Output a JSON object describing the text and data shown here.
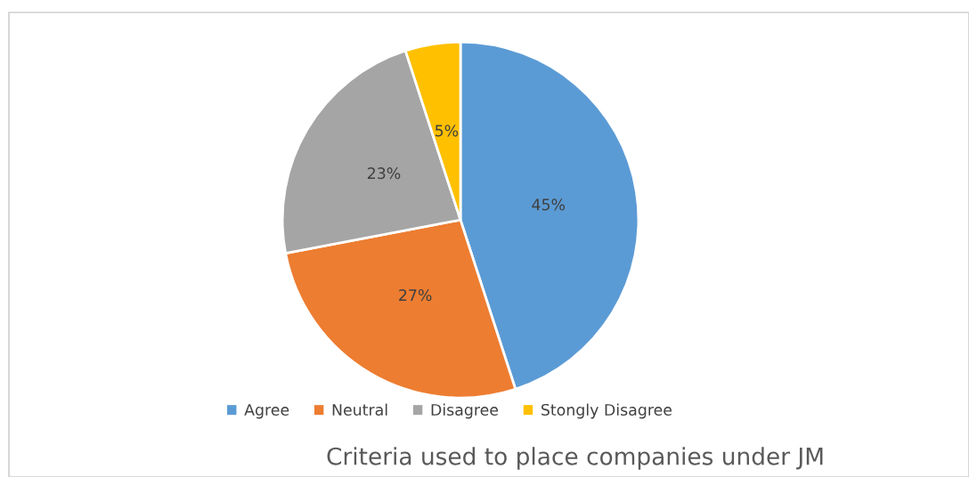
{
  "chart_data": {
    "type": "pie",
    "title": "Criteria used to place companies under JM",
    "categories": [
      "Agree",
      "Neutral",
      "Disagree",
      "Stongly Disagree"
    ],
    "values": [
      45,
      27,
      23,
      5
    ],
    "colors": [
      "#5b9bd5",
      "#ed7d31",
      "#a5a5a5",
      "#ffc000"
    ],
    "value_labels": [
      "45%",
      "27%",
      "23%",
      "5%"
    ],
    "legend": "bottom"
  }
}
